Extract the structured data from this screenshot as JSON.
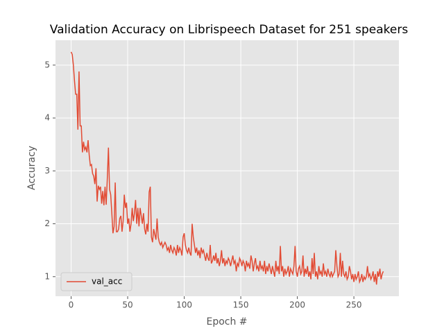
{
  "chart_data": {
    "type": "line",
    "title": "Validation Accuracy on Librispeech Dataset for 251 speakers",
    "xlabel": "Epoch #",
    "ylabel": "Accuracy",
    "xlim": [
      -13.8,
      289.8
    ],
    "ylim": [
      0.63,
      5.47
    ],
    "xticks": [
      0,
      50,
      100,
      150,
      200,
      250
    ],
    "yticks": [
      1,
      2,
      3,
      4,
      5
    ],
    "grid": true,
    "legend": "lower left",
    "x": [
      0,
      1,
      2,
      3,
      4,
      5,
      6,
      7,
      8,
      9,
      10,
      11,
      12,
      13,
      14,
      15,
      16,
      17,
      18,
      19,
      20,
      21,
      22,
      23,
      24,
      25,
      26,
      27,
      28,
      29,
      30,
      31,
      32,
      33,
      34,
      35,
      36,
      37,
      38,
      39,
      40,
      41,
      42,
      43,
      44,
      45,
      46,
      47,
      48,
      49,
      50,
      51,
      52,
      53,
      54,
      55,
      56,
      57,
      58,
      59,
      60,
      61,
      62,
      63,
      64,
      65,
      66,
      67,
      68,
      69,
      70,
      71,
      72,
      73,
      74,
      75,
      76,
      77,
      78,
      79,
      80,
      81,
      82,
      83,
      84,
      85,
      86,
      87,
      88,
      89,
      90,
      91,
      92,
      93,
      94,
      95,
      96,
      97,
      98,
      99,
      100,
      101,
      102,
      103,
      104,
      105,
      106,
      107,
      108,
      109,
      110,
      111,
      112,
      113,
      114,
      115,
      116,
      117,
      118,
      119,
      120,
      121,
      122,
      123,
      124,
      125,
      126,
      127,
      128,
      129,
      130,
      131,
      132,
      133,
      134,
      135,
      136,
      137,
      138,
      139,
      140,
      141,
      142,
      143,
      144,
      145,
      146,
      147,
      148,
      149,
      150,
      151,
      152,
      153,
      154,
      155,
      156,
      157,
      158,
      159,
      160,
      161,
      162,
      163,
      164,
      165,
      166,
      167,
      168,
      169,
      170,
      171,
      172,
      173,
      174,
      175,
      176,
      177,
      178,
      179,
      180,
      181,
      182,
      183,
      184,
      185,
      186,
      187,
      188,
      189,
      190,
      191,
      192,
      193,
      194,
      195,
      196,
      197,
      198,
      199,
      200,
      201,
      202,
      203,
      204,
      205,
      206,
      207,
      208,
      209,
      210,
      211,
      212,
      213,
      214,
      215,
      216,
      217,
      218,
      219,
      220,
      221,
      222,
      223,
      224,
      225,
      226,
      227,
      228,
      229,
      230,
      231,
      232,
      233,
      234,
      235,
      236,
      237,
      238,
      239,
      240,
      241,
      242,
      243,
      244,
      245,
      246,
      247,
      248,
      249,
      250,
      251,
      252,
      253,
      254,
      255,
      256,
      257,
      258,
      259,
      260,
      261,
      262,
      263,
      264,
      265,
      266,
      267,
      268,
      269,
      270,
      271,
      272,
      273,
      274,
      275,
      276
    ],
    "series": [
      {
        "name": "val_acc",
        "color": "#e24a33",
        "values": [
          5.25,
          5.2,
          5.0,
          4.7,
          4.45,
          4.45,
          3.78,
          4.88,
          3.85,
          3.85,
          3.35,
          3.55,
          3.4,
          3.45,
          3.35,
          3.58,
          3.3,
          3.1,
          3.12,
          2.95,
          2.9,
          2.75,
          3.05,
          2.42,
          2.72,
          2.65,
          2.7,
          2.38,
          2.62,
          2.35,
          2.7,
          2.36,
          2.85,
          3.44,
          2.65,
          2.55,
          2.2,
          1.82,
          1.95,
          2.78,
          1.85,
          1.85,
          1.9,
          2.1,
          2.15,
          1.85,
          2.05,
          2.55,
          2.3,
          2.4,
          2.0,
          2.1,
          1.85,
          2.0,
          2.3,
          2.05,
          2.2,
          2.45,
          2.0,
          2.3,
          1.95,
          2.3,
          2.15,
          2.0,
          2.2,
          1.9,
          1.8,
          2.0,
          1.85,
          2.6,
          2.7,
          1.75,
          1.65,
          1.9,
          1.8,
          1.7,
          2.1,
          1.75,
          1.65,
          1.6,
          1.65,
          1.55,
          1.6,
          1.65,
          1.6,
          1.5,
          1.55,
          1.45,
          1.6,
          1.5,
          1.45,
          1.55,
          1.5,
          1.4,
          1.6,
          1.45,
          1.55,
          1.5,
          1.4,
          1.75,
          1.82,
          1.6,
          1.5,
          1.45,
          1.55,
          1.45,
          1.4,
          2.0,
          1.75,
          1.6,
          1.45,
          1.55,
          1.4,
          1.5,
          1.35,
          1.55,
          1.45,
          1.5,
          1.4,
          1.3,
          1.45,
          1.35,
          1.3,
          1.6,
          1.25,
          1.3,
          1.4,
          1.3,
          1.45,
          1.25,
          1.35,
          1.2,
          1.3,
          1.5,
          1.25,
          1.35,
          1.2,
          1.3,
          1.25,
          1.35,
          1.3,
          1.2,
          1.3,
          1.4,
          1.25,
          1.3,
          1.1,
          1.25,
          1.2,
          1.35,
          1.3,
          1.2,
          1.3,
          1.25,
          1.1,
          1.3,
          1.2,
          1.25,
          1.15,
          1.4,
          1.3,
          1.1,
          1.25,
          1.35,
          1.15,
          1.2,
          1.1,
          1.3,
          1.15,
          1.2,
          1.1,
          1.3,
          1.05,
          1.2,
          1.1,
          1.25,
          1.15,
          1.05,
          1.2,
          1.1,
          1.0,
          1.3,
          1.1,
          1.2,
          1.05,
          1.58,
          1.1,
          1.2,
          1.0,
          1.15,
          1.05,
          1.1,
          1.2,
          1.0,
          1.15,
          1.1,
          1.05,
          1.2,
          1.58,
          1.1,
          1.0,
          1.15,
          1.2,
          1.05,
          1.1,
          1.4,
          1.0,
          1.15,
          1.05,
          1.2,
          1.0,
          1.1,
          0.95,
          1.35,
          1.05,
          1.45,
          1.0,
          1.1,
          0.95,
          1.2,
          1.05,
          1.1,
          1.0,
          1.25,
          1.05,
          1.1,
          1.0,
          1.15,
          1.05,
          1.0,
          1.1,
          1.0,
          1.05,
          1.1,
          1.5,
          1.2,
          1.0,
          1.05,
          1.45,
          1.0,
          1.3,
          1.05,
          1.0,
          1.1,
          0.95,
          1.0,
          1.2,
          1.1,
          0.95,
          1.05,
          0.9,
          1.05,
          0.95,
          1.0,
          1.1,
          0.9,
          0.95,
          1.05,
          0.9,
          1.0,
          0.95,
          1.0,
          1.2,
          1.0,
          1.05,
          0.95,
          1.0,
          1.1,
          0.9,
          1.05,
          0.85,
          1.1,
          1.0,
          1.15,
          0.95,
          1.05,
          1.1
        ]
      }
    ]
  }
}
